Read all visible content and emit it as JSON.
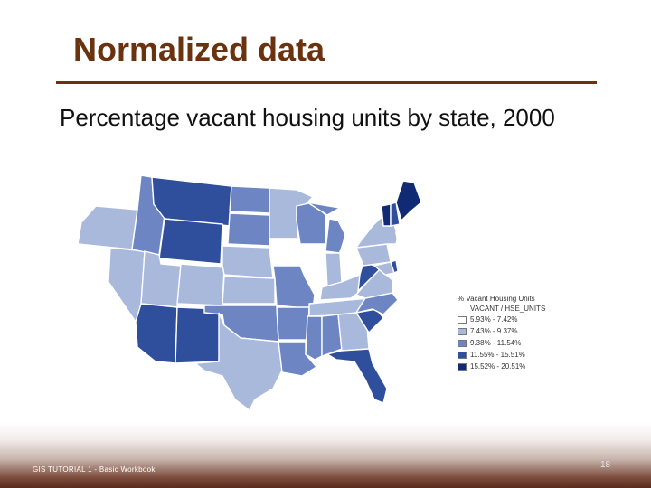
{
  "slide": {
    "title": "Normalized data",
    "subtitle": "Percentage vacant housing units by state, 2000",
    "footer": "GIS TUTORIAL 1 - Basic Workbook",
    "page_number": "18"
  },
  "legend": {
    "title": "% Vacant Housing Units",
    "field": "VACANT / HSE_UNITS",
    "classes": [
      {
        "label": "5.93% - 7.42%",
        "color": "#ffffff"
      },
      {
        "label": "7.43% - 9.37%",
        "color": "#a9b9dc"
      },
      {
        "label": "9.38% - 11.54%",
        "color": "#6d86c3"
      },
      {
        "label": "11.55% - 15.51%",
        "color": "#2f4f9d"
      },
      {
        "label": "15.52% - 20.51%",
        "color": "#102b73"
      }
    ]
  },
  "map": {
    "states": [
      {
        "id": "WA",
        "class": 0
      },
      {
        "id": "OR",
        "class": 1
      },
      {
        "id": "CA",
        "class": 0
      },
      {
        "id": "NV",
        "class": 1
      },
      {
        "id": "ID",
        "class": 2
      },
      {
        "id": "MT",
        "class": 3
      },
      {
        "id": "WY",
        "class": 3
      },
      {
        "id": "UT",
        "class": 1
      },
      {
        "id": "CO",
        "class": 1
      },
      {
        "id": "AZ",
        "class": 3
      },
      {
        "id": "NM",
        "class": 3
      },
      {
        "id": "ND",
        "class": 2
      },
      {
        "id": "SD",
        "class": 2
      },
      {
        "id": "NE",
        "class": 1
      },
      {
        "id": "KS",
        "class": 1
      },
      {
        "id": "OK",
        "class": 2
      },
      {
        "id": "TX",
        "class": 1
      },
      {
        "id": "MN",
        "class": 1
      },
      {
        "id": "IA",
        "class": 0
      },
      {
        "id": "MO",
        "class": 2
      },
      {
        "id": "AR",
        "class": 2
      },
      {
        "id": "LA",
        "class": 2
      },
      {
        "id": "WI",
        "class": 2
      },
      {
        "id": "IL",
        "class": 0
      },
      {
        "id": "MI",
        "class": 2
      },
      {
        "id": "IN",
        "class": 1
      },
      {
        "id": "OH",
        "class": 0
      },
      {
        "id": "KY",
        "class": 1
      },
      {
        "id": "TN",
        "class": 1
      },
      {
        "id": "MS",
        "class": 2
      },
      {
        "id": "AL",
        "class": 2
      },
      {
        "id": "GA",
        "class": 1
      },
      {
        "id": "FL",
        "class": 3
      },
      {
        "id": "SC",
        "class": 3
      },
      {
        "id": "NC",
        "class": 2
      },
      {
        "id": "VA",
        "class": 1
      },
      {
        "id": "WV",
        "class": 3
      },
      {
        "id": "PA",
        "class": 1
      },
      {
        "id": "NY",
        "class": 1
      },
      {
        "id": "VT",
        "class": 4
      },
      {
        "id": "NH",
        "class": 3
      },
      {
        "id": "ME",
        "class": 4
      },
      {
        "id": "MA",
        "class": 0
      },
      {
        "id": "CT",
        "class": 0
      },
      {
        "id": "NJ",
        "class": 0
      },
      {
        "id": "MD",
        "class": 1
      },
      {
        "id": "DE",
        "class": 3
      }
    ]
  }
}
